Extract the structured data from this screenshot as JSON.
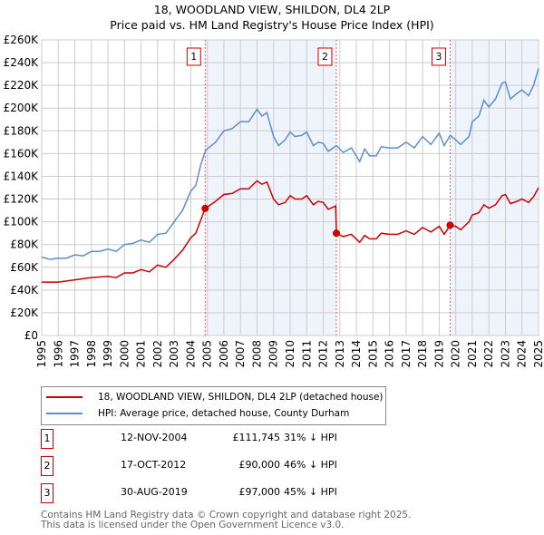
{
  "chart_data": {
    "type": "line",
    "title": "18, WOODLAND VIEW, SHILDON, DL4 2LP",
    "subtitle": "Price paid vs. HM Land Registry's House Price Index (HPI)",
    "xlim": [
      1995,
      2025
    ],
    "ylim": [
      0,
      260000
    ],
    "y_ticks": [
      "£0",
      "£20K",
      "£40K",
      "£60K",
      "£80K",
      "£100K",
      "£120K",
      "£140K",
      "£160K",
      "£180K",
      "£200K",
      "£220K",
      "£240K",
      "£260K"
    ],
    "x_ticks": [
      "1995",
      "1996",
      "1997",
      "1998",
      "1999",
      "2000",
      "2001",
      "2002",
      "2003",
      "2004",
      "2005",
      "2006",
      "2007",
      "2008",
      "2009",
      "2010",
      "2011",
      "2012",
      "2013",
      "2014",
      "2015",
      "2016",
      "2017",
      "2018",
      "2019",
      "2020",
      "2021",
      "2022",
      "2023",
      "2024",
      "2025"
    ],
    "grid": true,
    "series": [
      {
        "name": "18, WOODLAND VIEW, SHILDON, DL4 2LP (detached house)",
        "color": "#cc0000",
        "x": [
          1995,
          1996,
          1997,
          1998,
          1999,
          1999.5,
          2000,
          2000.5,
          2001,
          2001.5,
          2002,
          2002.5,
          2003,
          2003.5,
          2004,
          2004.3,
          2004.87,
          2005.5,
          2006,
          2006.5,
          2007,
          2007.5,
          2008,
          2008.3,
          2008.6,
          2009,
          2009.3,
          2009.7,
          2010,
          2010.3,
          2010.7,
          2011,
          2011.4,
          2011.7,
          2012,
          2012.3,
          2012.75,
          2012.8,
          2013.2,
          2013.7,
          2014.2,
          2014.5,
          2014.8,
          2015.2,
          2015.5,
          2016,
          2016.5,
          2017,
          2017.5,
          2018,
          2018.5,
          2019,
          2019.3,
          2019.66,
          2020,
          2020.3,
          2020.8,
          2021,
          2021.4,
          2021.7,
          2022,
          2022.4,
          2022.8,
          2023,
          2023.3,
          2023.7,
          2024,
          2024.4,
          2024.7,
          2025
        ],
        "y": [
          47,
          47,
          49,
          51,
          52,
          51,
          55,
          55,
          58,
          56,
          62,
          60,
          67,
          75,
          86,
          90,
          111.7,
          118,
          124,
          125,
          129,
          129,
          136,
          133,
          135,
          120,
          115,
          117,
          123,
          120,
          120,
          123,
          115,
          118,
          117,
          111,
          114,
          90,
          87,
          89,
          82,
          88,
          85,
          85,
          90,
          89,
          89,
          92,
          89,
          95,
          91,
          96,
          89,
          97,
          96,
          93,
          100,
          106,
          108,
          115,
          112,
          115,
          123,
          124,
          116,
          118,
          120,
          117,
          122,
          130
        ]
      },
      {
        "name": "HPI: Average price, detached house, County Durham",
        "color": "#5b8fd0",
        "x": [
          1995,
          1995.5,
          1996,
          1996.5,
          1997,
          1997.5,
          1998,
          1998.5,
          1999,
          1999.5,
          2000,
          2000.5,
          2001,
          2001.5,
          2002,
          2002.5,
          2003,
          2003.5,
          2004,
          2004.3,
          2004.6,
          2004.9,
          2005.5,
          2006,
          2006.5,
          2007,
          2007.5,
          2008,
          2008.3,
          2008.6,
          2009,
          2009.3,
          2009.7,
          2010,
          2010.3,
          2010.7,
          2011,
          2011.4,
          2011.7,
          2012,
          2012.3,
          2012.8,
          2013.2,
          2013.7,
          2014.2,
          2014.5,
          2014.8,
          2015.2,
          2015.5,
          2016,
          2016.5,
          2017,
          2017.5,
          2018,
          2018.5,
          2019,
          2019.3,
          2019.66,
          2020,
          2020.3,
          2020.8,
          2021,
          2021.4,
          2021.7,
          2022,
          2022.4,
          2022.8,
          2023,
          2023.3,
          2023.7,
          2024,
          2024.4,
          2024.7,
          2025
        ],
        "y": [
          69,
          67,
          68,
          68,
          71,
          70,
          74,
          74,
          76,
          74,
          80,
          81,
          84,
          82,
          89,
          90,
          100,
          110,
          127,
          132,
          150,
          163,
          170,
          180,
          182,
          188,
          188,
          199,
          193,
          196,
          175,
          167,
          172,
          179,
          175,
          176,
          179,
          167,
          170,
          169,
          162,
          167,
          161,
          165,
          153,
          164,
          158,
          158,
          166,
          165,
          165,
          170,
          165,
          175,
          168,
          178,
          167,
          176,
          172,
          168,
          175,
          188,
          193,
          207,
          201,
          208,
          222,
          223,
          208,
          213,
          216,
          211,
          220,
          235
        ]
      }
    ],
    "y_unit": "thousands GBP",
    "sales": [
      {
        "label": "1",
        "x": 2004.87,
        "y": 111.745
      },
      {
        "label": "2",
        "x": 2012.79,
        "y": 90
      },
      {
        "label": "3",
        "x": 2019.66,
        "y": 97
      }
    ],
    "legend_placement": "below"
  },
  "table": [
    {
      "num": "1",
      "date": "12-NOV-2004",
      "price": "£111,745",
      "hpi": "31% ↓ HPI"
    },
    {
      "num": "2",
      "date": "17-OCT-2012",
      "price": "£90,000",
      "hpi": "46% ↓ HPI"
    },
    {
      "num": "3",
      "date": "30-AUG-2019",
      "price": "£97,000",
      "hpi": "45% ↓ HPI"
    }
  ],
  "footer": {
    "line1": "Contains HM Land Registry data © Crown copyright and database right 2025.",
    "line2": "This data is licensed under the Open Government Licence v3.0."
  }
}
